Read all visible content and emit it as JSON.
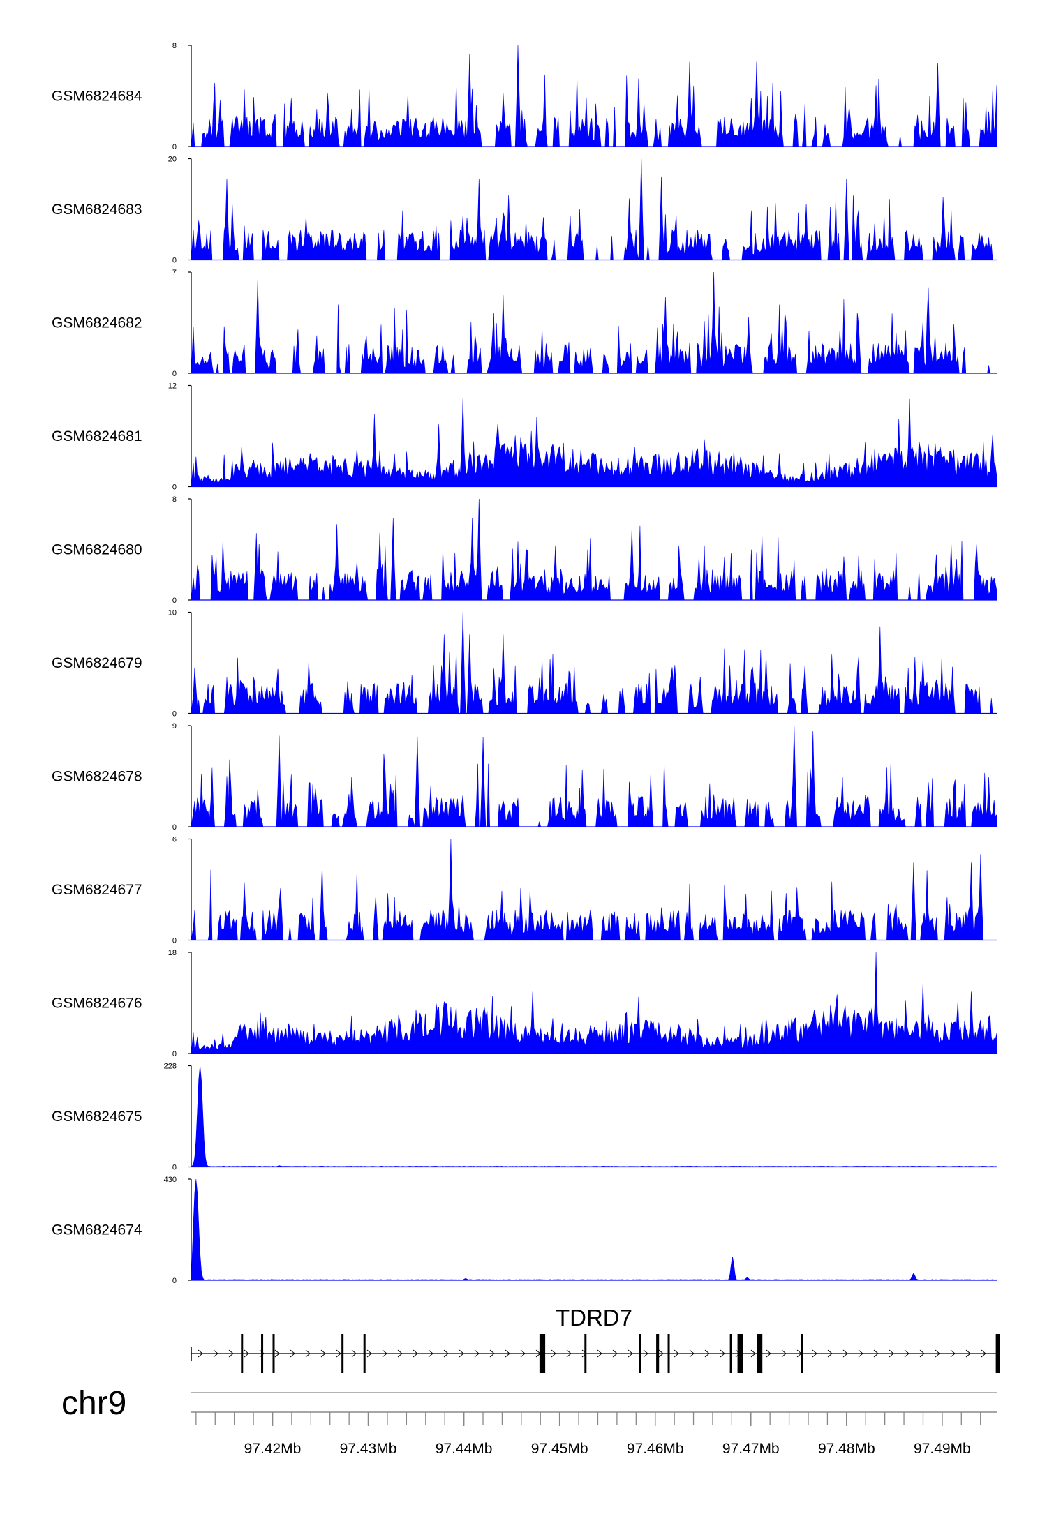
{
  "colors": {
    "signal": "#0000ff",
    "axis": "#000000",
    "gene": "#000000",
    "ruler": "#888888"
  },
  "chart_data": {
    "type": "area",
    "chromosome": "chr9",
    "gene": {
      "name": "TDRD7",
      "strand": "+",
      "start": 97.4115,
      "end": 97.4957
    },
    "x_range_mb": [
      97.4115,
      97.4957
    ],
    "x_ticks": [
      {
        "value": 97.42,
        "label": "97.42Mb"
      },
      {
        "value": 97.43,
        "label": "97.43Mb"
      },
      {
        "value": 97.44,
        "label": "97.44Mb"
      },
      {
        "value": 97.45,
        "label": "97.45Mb"
      },
      {
        "value": 97.46,
        "label": "97.46Mb"
      },
      {
        "value": 97.47,
        "label": "97.47Mb"
      },
      {
        "value": 97.48,
        "label": "97.48Mb"
      },
      {
        "value": 97.49,
        "label": "97.49Mb"
      }
    ],
    "exons_mb": [
      [
        97.4167,
        97.4169
      ],
      [
        97.4188,
        97.419
      ],
      [
        97.42,
        97.4202
      ],
      [
        97.4272,
        97.4274
      ],
      [
        97.4295,
        97.4297
      ],
      [
        97.4479,
        97.4485
      ],
      [
        97.4526,
        97.4528
      ],
      [
        97.4583,
        97.4585
      ],
      [
        97.4601,
        97.4604
      ],
      [
        97.4613,
        97.4615
      ],
      [
        97.4678,
        97.468
      ],
      [
        97.4686,
        97.4692
      ],
      [
        97.4706,
        97.4712
      ],
      [
        97.4752,
        97.4754
      ],
      [
        97.4956,
        97.496
      ]
    ],
    "tracks": [
      {
        "name": "GSM6824684",
        "ymax": 8,
        "ymin": 0,
        "profile": "uniform-sparse",
        "peaks": [
          [
            97.4455,
            8.0
          ],
          [
            97.4405,
            7.3
          ],
          [
            97.4635,
            6.7
          ],
          [
            97.4705,
            6.7
          ],
          [
            97.4895,
            6.6
          ]
        ]
      },
      {
        "name": "GSM6824683",
        "ymax": 20,
        "ymin": 0,
        "profile": "uniform-sparse",
        "peaks": [
          [
            97.4585,
            20.0
          ],
          [
            97.4605,
            16.5
          ],
          [
            97.415,
            16.0
          ],
          [
            97.4415,
            16.0
          ],
          [
            97.48,
            16.0
          ]
        ]
      },
      {
        "name": "GSM6824682",
        "ymax": 7,
        "ymin": 0,
        "profile": "uniform-sparse",
        "peaks": [
          [
            97.466,
            7.0
          ],
          [
            97.4182,
            6.4
          ],
          [
            97.4885,
            5.9
          ],
          [
            97.444,
            5.4
          ],
          [
            97.461,
            5.3
          ]
        ]
      },
      {
        "name": "GSM6824681",
        "ymax": 12,
        "ymin": 0,
        "profile": "uniform-dense",
        "peaks": [
          [
            97.4398,
            10.5
          ],
          [
            97.4865,
            10.4
          ],
          [
            97.4305,
            8.6
          ],
          [
            97.4855,
            8.0
          ],
          [
            97.4372,
            7.4
          ]
        ]
      },
      {
        "name": "GSM6824680",
        "ymax": 8,
        "ymin": 0,
        "profile": "uniform-sparse",
        "peaks": [
          [
            97.4415,
            8.0
          ],
          [
            97.4325,
            6.5
          ],
          [
            97.4407,
            6.5
          ],
          [
            97.4265,
            6.0
          ],
          [
            97.4575,
            5.6
          ]
        ]
      },
      {
        "name": "GSM6824679",
        "ymax": 10,
        "ymin": 0,
        "profile": "uniform-sparse",
        "peaks": [
          [
            97.4398,
            10.0
          ],
          [
            97.4835,
            8.6
          ],
          [
            97.4378,
            7.8
          ],
          [
            97.4405,
            7.8
          ],
          [
            97.444,
            7.8
          ]
        ]
      },
      {
        "name": "GSM6824678",
        "ymax": 9,
        "ymin": 0,
        "profile": "uniform-sparse",
        "peaks": [
          [
            97.4745,
            9.0
          ],
          [
            97.4765,
            8.5
          ],
          [
            97.4205,
            8.1
          ],
          [
            97.435,
            8.0
          ],
          [
            97.4418,
            8.0
          ]
        ]
      },
      {
        "name": "GSM6824677",
        "ymax": 6,
        "ymin": 0,
        "profile": "uniform-sparse",
        "peaks": [
          [
            97.4385,
            6.0
          ],
          [
            97.494,
            5.1
          ],
          [
            97.493,
            4.6
          ],
          [
            97.487,
            4.6
          ],
          [
            97.425,
            4.4
          ]
        ]
      },
      {
        "name": "GSM6824676",
        "ymax": 18,
        "ymin": 0,
        "profile": "uniform-dense",
        "peaks": [
          [
            97.483,
            18.0
          ],
          [
            97.488,
            12.5
          ],
          [
            97.447,
            11.0
          ],
          [
            97.493,
            11.0
          ],
          [
            97.479,
            10.5
          ]
        ]
      },
      {
        "name": "GSM6824675",
        "ymax": 228,
        "ymin": 0,
        "profile": "single-peak",
        "peaks": [
          [
            97.4122,
            228.0
          ],
          [
            97.4205,
            3.0
          ]
        ]
      },
      {
        "name": "GSM6824674",
        "ymax": 430,
        "ymin": 0,
        "profile": "single-peak",
        "peaks": [
          [
            97.4118,
            430.0
          ],
          [
            97.468,
            100.0
          ],
          [
            97.487,
            30.0
          ],
          [
            97.4695,
            12.0
          ],
          [
            97.44,
            8.0
          ]
        ]
      }
    ]
  }
}
